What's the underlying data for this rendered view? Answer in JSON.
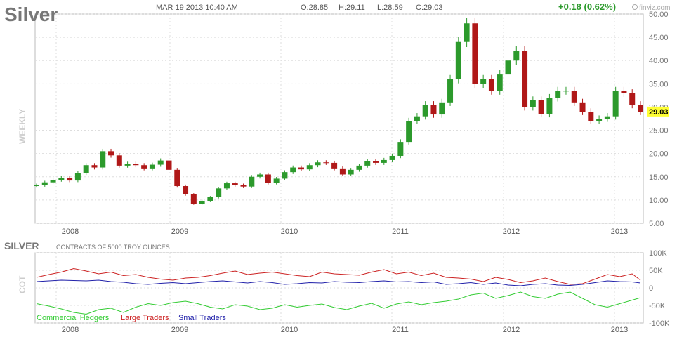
{
  "header": {
    "title": "Silver",
    "datetime": "MAR 19 2013 10:40 AM",
    "open": "O:28.85",
    "high": "H:29.11",
    "low": "L:28.59",
    "close": "C:29.03",
    "change": "+0.18 (0.62%)",
    "brand": "finviz.com",
    "period": "WEEKLY"
  },
  "colors": {
    "up": "#2c9a2c",
    "down": "#b01818",
    "price_tag": "#ffff33",
    "commercial": "#33cc33",
    "large": "#cc2222",
    "small": "#2222aa"
  },
  "chart_data": [
    {
      "type": "candlestick",
      "ylim": [
        5,
        50
      ],
      "y_ticks": [
        "50.00",
        "45.00",
        "40.00",
        "35.00",
        "30.00",
        "25.00",
        "20.00",
        "15.00",
        "10.00",
        "5.00"
      ],
      "x_ticks": [
        "2008",
        "2009",
        "2010",
        "2011",
        "2012",
        "2013"
      ],
      "last_price": "29.03",
      "x": [
        0,
        4,
        8,
        12,
        16,
        20,
        24,
        28,
        32,
        36,
        40,
        44,
        48,
        52,
        56,
        60,
        64,
        68,
        72,
        76,
        80,
        84,
        88,
        92,
        96,
        100,
        104,
        108,
        112,
        116,
        120,
        124,
        128,
        132,
        136,
        140,
        144,
        148,
        152,
        156,
        160,
        164,
        168,
        172,
        176,
        180,
        184,
        188,
        192,
        196,
        200,
        204,
        208,
        212,
        216,
        220,
        224,
        228,
        232,
        236,
        240,
        244,
        248,
        252,
        256,
        260,
        264,
        268,
        272,
        276,
        280,
        284,
        288,
        292
      ],
      "close": [
        13.2,
        13.8,
        14.3,
        14.8,
        14.2,
        15.8,
        17.5,
        17.0,
        20.5,
        19.6,
        17.4,
        17.8,
        17.5,
        16.8,
        17.6,
        18.5,
        16.5,
        13.0,
        11.2,
        9.2,
        9.8,
        10.6,
        12.5,
        13.6,
        13.2,
        12.9,
        15.0,
        15.5,
        13.7,
        14.6,
        16.0,
        17.0,
        16.6,
        17.5,
        18.1,
        18.0,
        16.8,
        15.5,
        16.5,
        17.4,
        18.3,
        18.0,
        18.6,
        19.5,
        22.5,
        27.0,
        28.0,
        30.5,
        28.4,
        31.0,
        36.0,
        44.0,
        48.0,
        35.0,
        36.0,
        33.5,
        37.0,
        40.0,
        42.0,
        30.0,
        31.5,
        28.5,
        32.0,
        33.5,
        33.5,
        31.0,
        29.0,
        27.0,
        27.5,
        28.0,
        33.5,
        33.0,
        30.5,
        29.0
      ],
      "open": [
        13.0,
        13.2,
        13.8,
        14.3,
        14.8,
        14.2,
        15.8,
        17.5,
        17.0,
        20.5,
        19.6,
        17.4,
        17.8,
        17.5,
        16.8,
        17.6,
        18.5,
        16.5,
        13.0,
        11.2,
        9.2,
        9.8,
        10.6,
        12.5,
        13.6,
        13.2,
        12.9,
        15.0,
        15.5,
        13.7,
        14.6,
        16.0,
        17.0,
        16.6,
        17.5,
        18.1,
        18.0,
        16.8,
        15.5,
        16.5,
        17.4,
        18.3,
        18.0,
        18.6,
        19.5,
        22.5,
        27.0,
        28.0,
        30.5,
        28.4,
        31.0,
        36.0,
        44.0,
        48.0,
        35.0,
        36.0,
        33.5,
        37.0,
        40.0,
        42.0,
        30.0,
        31.5,
        28.5,
        32.0,
        33.5,
        33.5,
        31.0,
        29.0,
        27.0,
        27.5,
        28.0,
        33.5,
        33.0,
        30.5
      ]
    },
    {
      "type": "line",
      "title": "SILVER",
      "subtitle": "CONTRACTS OF 5000 TROY OUNCES",
      "ylabel": "COT",
      "ylim": [
        -100000,
        100000
      ],
      "y_ticks": [
        "100K",
        "50K",
        "0",
        "-50K",
        "-100K"
      ],
      "x_ticks": [
        "2008",
        "2009",
        "2010",
        "2011",
        "2012",
        "2013"
      ],
      "x": [
        0,
        6,
        12,
        18,
        24,
        30,
        36,
        42,
        48,
        54,
        60,
        66,
        72,
        78,
        84,
        90,
        96,
        102,
        108,
        114,
        120,
        126,
        132,
        138,
        144,
        150,
        156,
        162,
        168,
        174,
        180,
        186,
        192,
        198,
        204,
        210,
        216,
        222,
        228,
        234,
        240,
        246,
        252,
        258,
        264,
        270,
        276,
        282,
        288,
        292
      ],
      "series": [
        {
          "name": "Commercial Hedgers",
          "values": [
            -45000,
            -52000,
            -60000,
            -70000,
            -75000,
            -62000,
            -58000,
            -70000,
            -55000,
            -45000,
            -50000,
            -42000,
            -38000,
            -45000,
            -55000,
            -60000,
            -48000,
            -52000,
            -62000,
            -58000,
            -48000,
            -55000,
            -50000,
            -46000,
            -56000,
            -62000,
            -52000,
            -44000,
            -58000,
            -46000,
            -40000,
            -48000,
            -42000,
            -38000,
            -32000,
            -20000,
            -15000,
            -30000,
            -22000,
            -12000,
            -25000,
            -30000,
            -18000,
            -12000,
            -30000,
            -48000,
            -55000,
            -45000,
            -35000,
            -28000
          ]
        },
        {
          "name": "Large Traders",
          "values": [
            30000,
            38000,
            45000,
            55000,
            48000,
            40000,
            45000,
            35000,
            38000,
            30000,
            25000,
            22000,
            28000,
            30000,
            35000,
            42000,
            48000,
            38000,
            42000,
            45000,
            40000,
            35000,
            32000,
            45000,
            40000,
            38000,
            36000,
            45000,
            52000,
            40000,
            45000,
            35000,
            42000,
            30000,
            28000,
            25000,
            18000,
            30000,
            24000,
            15000,
            20000,
            28000,
            18000,
            10000,
            12000,
            25000,
            38000,
            32000,
            40000,
            22000
          ]
        },
        {
          "name": "Small Traders",
          "values": [
            18000,
            20000,
            22000,
            21000,
            20000,
            22000,
            18000,
            16000,
            12000,
            10000,
            13000,
            15000,
            12000,
            15000,
            18000,
            20000,
            17000,
            14000,
            18000,
            15000,
            10000,
            12000,
            15000,
            14000,
            18000,
            16000,
            15000,
            18000,
            20000,
            17000,
            18000,
            15000,
            17000,
            10000,
            12000,
            15000,
            10000,
            14000,
            8000,
            6000,
            10000,
            12000,
            8000,
            7000,
            10000,
            15000,
            20000,
            18000,
            17000,
            14000
          ]
        }
      ]
    }
  ]
}
